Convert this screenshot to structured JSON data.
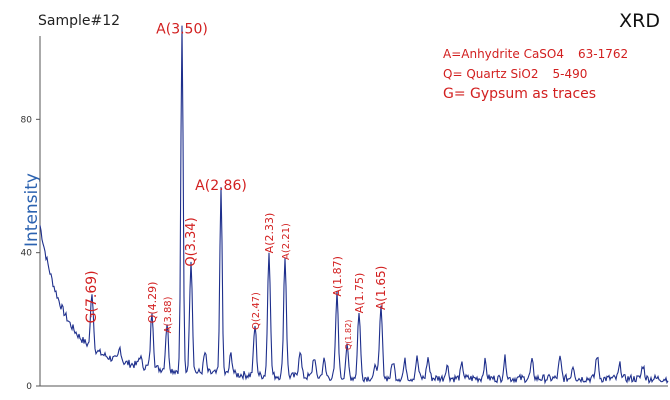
{
  "header": {
    "sample": "Sample#12",
    "method": "XRD"
  },
  "legend": {
    "line1_label": "A=Anhydrite CaSO4",
    "line1_code": "63-1762",
    "line2_label": "Q= Quartz SiO2",
    "line2_code": "5-490",
    "line3": "G= Gypsum as traces"
  },
  "chart_data": {
    "type": "line",
    "ylabel": "Intensity",
    "xlabel": "",
    "ylim": [
      0,
      105
    ],
    "yticks": [
      0,
      40,
      80
    ],
    "grid": false,
    "series": [
      {
        "values_described_as_peaks": true
      }
    ],
    "peaks": [
      {
        "label": "G(7.69)",
        "peak_height": 17
      },
      {
        "label": "Q(4.29)",
        "peak_height": 17
      },
      {
        "label": "A(3.88)",
        "peak_height": 14
      },
      {
        "label": "A(3.50)",
        "peak_height": 104
      },
      {
        "label": "Q(3.34)",
        "peak_height": 34
      },
      {
        "label": "A(2.86)",
        "peak_height": 57
      },
      {
        "label": "Q(2.47)",
        "peak_height": 15
      },
      {
        "label": "A(2.33)",
        "peak_height": 38
      },
      {
        "label": "A(2.21)",
        "peak_height": 36
      },
      {
        "label": "A(1.87)",
        "peak_height": 25
      },
      {
        "label": "Q(1.82)",
        "peak_height": 9
      },
      {
        "label": "A(1.75)",
        "peak_height": 20
      },
      {
        "label": "A(1.65)",
        "peak_height": 21
      }
    ],
    "colors": {
      "line": "#1e2f8c",
      "labels": "#d21f1f",
      "ylabel": "#2b62b0"
    }
  }
}
